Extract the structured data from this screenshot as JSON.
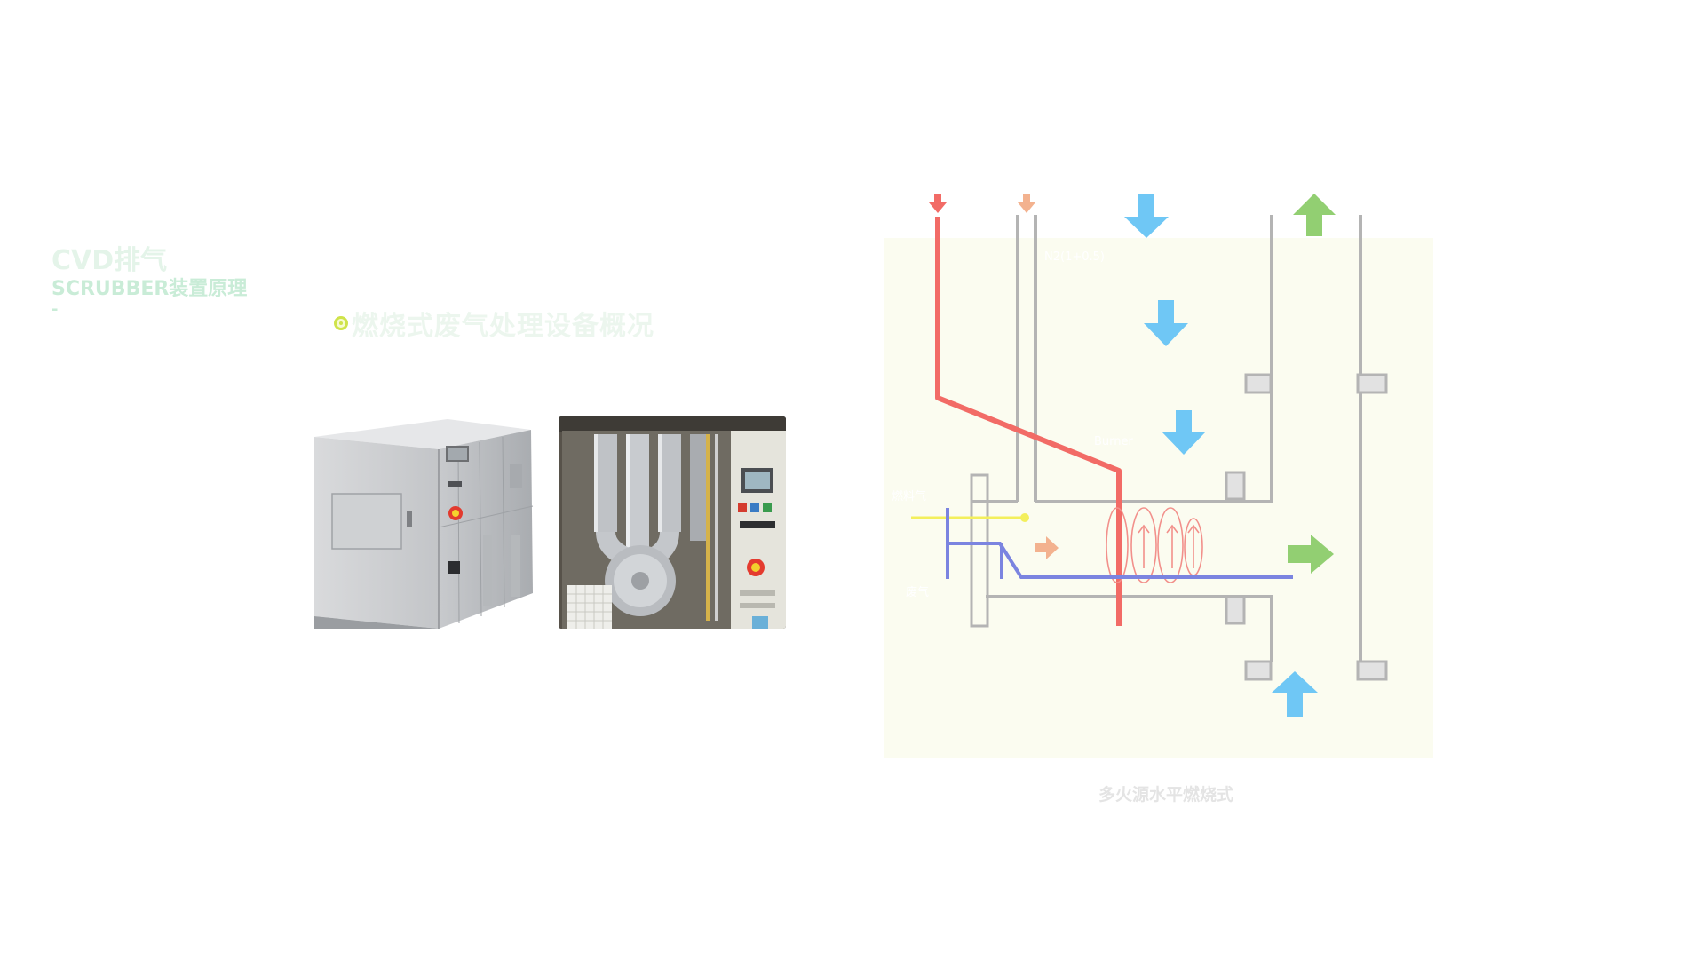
{
  "header": {
    "title": "CVD排气",
    "subtitle": "SCRUBBER装置原理",
    "dash": "-"
  },
  "section": {
    "heading": "燃烧式废气处理设备概况"
  },
  "photos": [
    {
      "name": "scrubber-cabinet-exterior"
    },
    {
      "name": "scrubber-cabinet-interior"
    }
  ],
  "diagram": {
    "label_top": "N2(1+0.5)",
    "label_mid": "Burner",
    "label_left1": "燃料气",
    "label_left2": "废气",
    "caption": "多火源水平燃烧式",
    "colors": {
      "red_line": "#f26b66",
      "gray_line": "#b4b4b4",
      "blue_line": "#7b84e0",
      "yellow_line": "#f3ef5c",
      "blue_arrow": "#6fc7f5",
      "green_arrow": "#92cf72",
      "orange_arrow": "#f3b28f"
    }
  }
}
